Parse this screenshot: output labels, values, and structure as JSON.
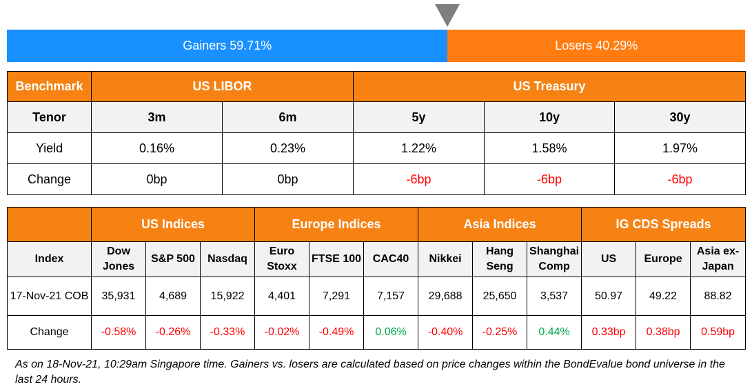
{
  "gainers_losers": {
    "gainers_label": "Gainers 59.71%",
    "losers_label": "Losers 40.29%",
    "gainers_pct": 59.71,
    "losers_pct": 40.29,
    "gainers_color": "#1890ff",
    "losers_color": "#ff7c10"
  },
  "rates": {
    "benchmark_label": "Benchmark",
    "libor_label": "US LIBOR",
    "treasury_label": "US Treasury",
    "tenor_label": "Tenor",
    "tenors": [
      "3m",
      "6m",
      "5y",
      "10y",
      "30y"
    ],
    "yield_label": "Yield",
    "yields": [
      "0.16%",
      "0.23%",
      "1.22%",
      "1.58%",
      "1.97%"
    ],
    "change_label": "Change",
    "changes": [
      "0bp",
      "0bp",
      "-6bp",
      "-6bp",
      "-6bp"
    ]
  },
  "indices": {
    "groups": [
      "US Indices",
      "Europe Indices",
      "Asia Indices",
      "IG CDS Spreads"
    ],
    "index_label": "Index",
    "names": [
      [
        "Dow",
        "Jones"
      ],
      [
        "S&P 500"
      ],
      [
        "Nasdaq"
      ],
      [
        "Euro",
        "Stoxx"
      ],
      [
        "FTSE 100"
      ],
      [
        "CAC40"
      ],
      [
        "Nikkei"
      ],
      [
        "Hang",
        "Seng"
      ],
      [
        "Shanghai",
        "Comp"
      ],
      [
        "US"
      ],
      [
        "Europe"
      ],
      [
        "Asia ex-",
        "Japan"
      ]
    ],
    "date_label": "17-Nov-21 COB",
    "values": [
      "35,931",
      "4,689",
      "15,922",
      "4,401",
      "7,291",
      "7,157",
      "29,688",
      "25,650",
      "3,537",
      "50.97",
      "49.22",
      "88.82"
    ],
    "change_label": "Change",
    "changes": [
      "-0.58%",
      "-0.26%",
      "-0.33%",
      "-0.02%",
      "-0.49%",
      "0.06%",
      "-0.40%",
      "-0.25%",
      "0.44%",
      "0.33bp",
      "0.38bp",
      "0.59bp"
    ]
  },
  "colors": {
    "header_orange": "#f58213",
    "negative_red": "#ff0000",
    "positive_green": "#00a84f"
  },
  "footnote": "As on 18-Nov-21, 10:29am Singapore time. Gainers vs. losers are calculated based on price changes within the BondEvalue bond universe in the last 24 hours."
}
